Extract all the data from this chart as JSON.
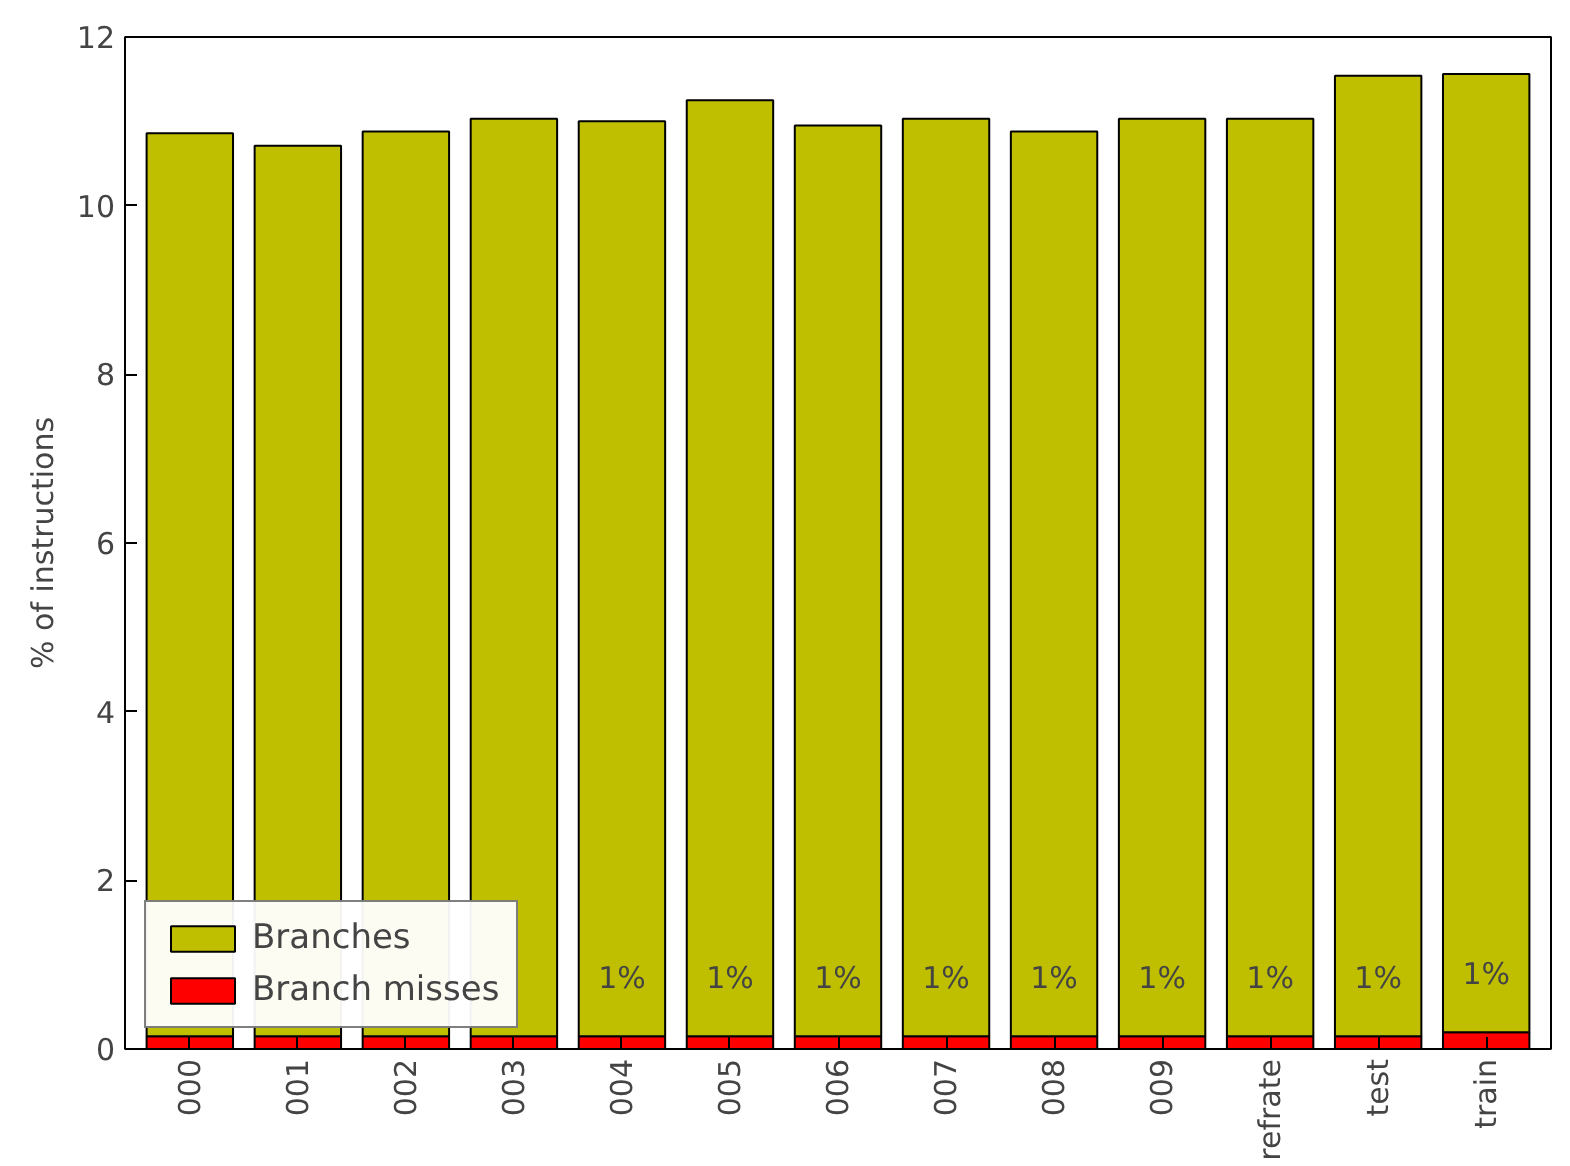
{
  "chart_data": {
    "type": "bar",
    "ylabel": "% of instructions",
    "stacked": true,
    "categories": [
      "000",
      "001",
      "002",
      "003",
      "004",
      "005",
      "006",
      "007",
      "008",
      "009",
      "refrate",
      "test",
      "train"
    ],
    "series": [
      {
        "name": "Branch misses",
        "color": "#ff0000",
        "values": [
          0.15,
          0.15,
          0.15,
          0.15,
          0.15,
          0.15,
          0.15,
          0.15,
          0.15,
          0.15,
          0.15,
          0.15,
          0.2
        ]
      },
      {
        "name": "Branches",
        "color": "#bfbf00",
        "values": [
          10.71,
          10.56,
          10.73,
          10.88,
          10.85,
          11.1,
          10.8,
          10.88,
          10.73,
          10.88,
          10.88,
          11.39,
          11.36
        ]
      }
    ],
    "annotations": [
      "1%",
      "1%",
      "1%",
      "1%",
      "1%",
      "1%",
      "1%",
      "1%",
      "1%"
    ],
    "ylim": [
      0,
      12
    ],
    "yticks": [
      0,
      2,
      4,
      6,
      8,
      10,
      12
    ],
    "grid": false,
    "legend": "bottom left"
  }
}
